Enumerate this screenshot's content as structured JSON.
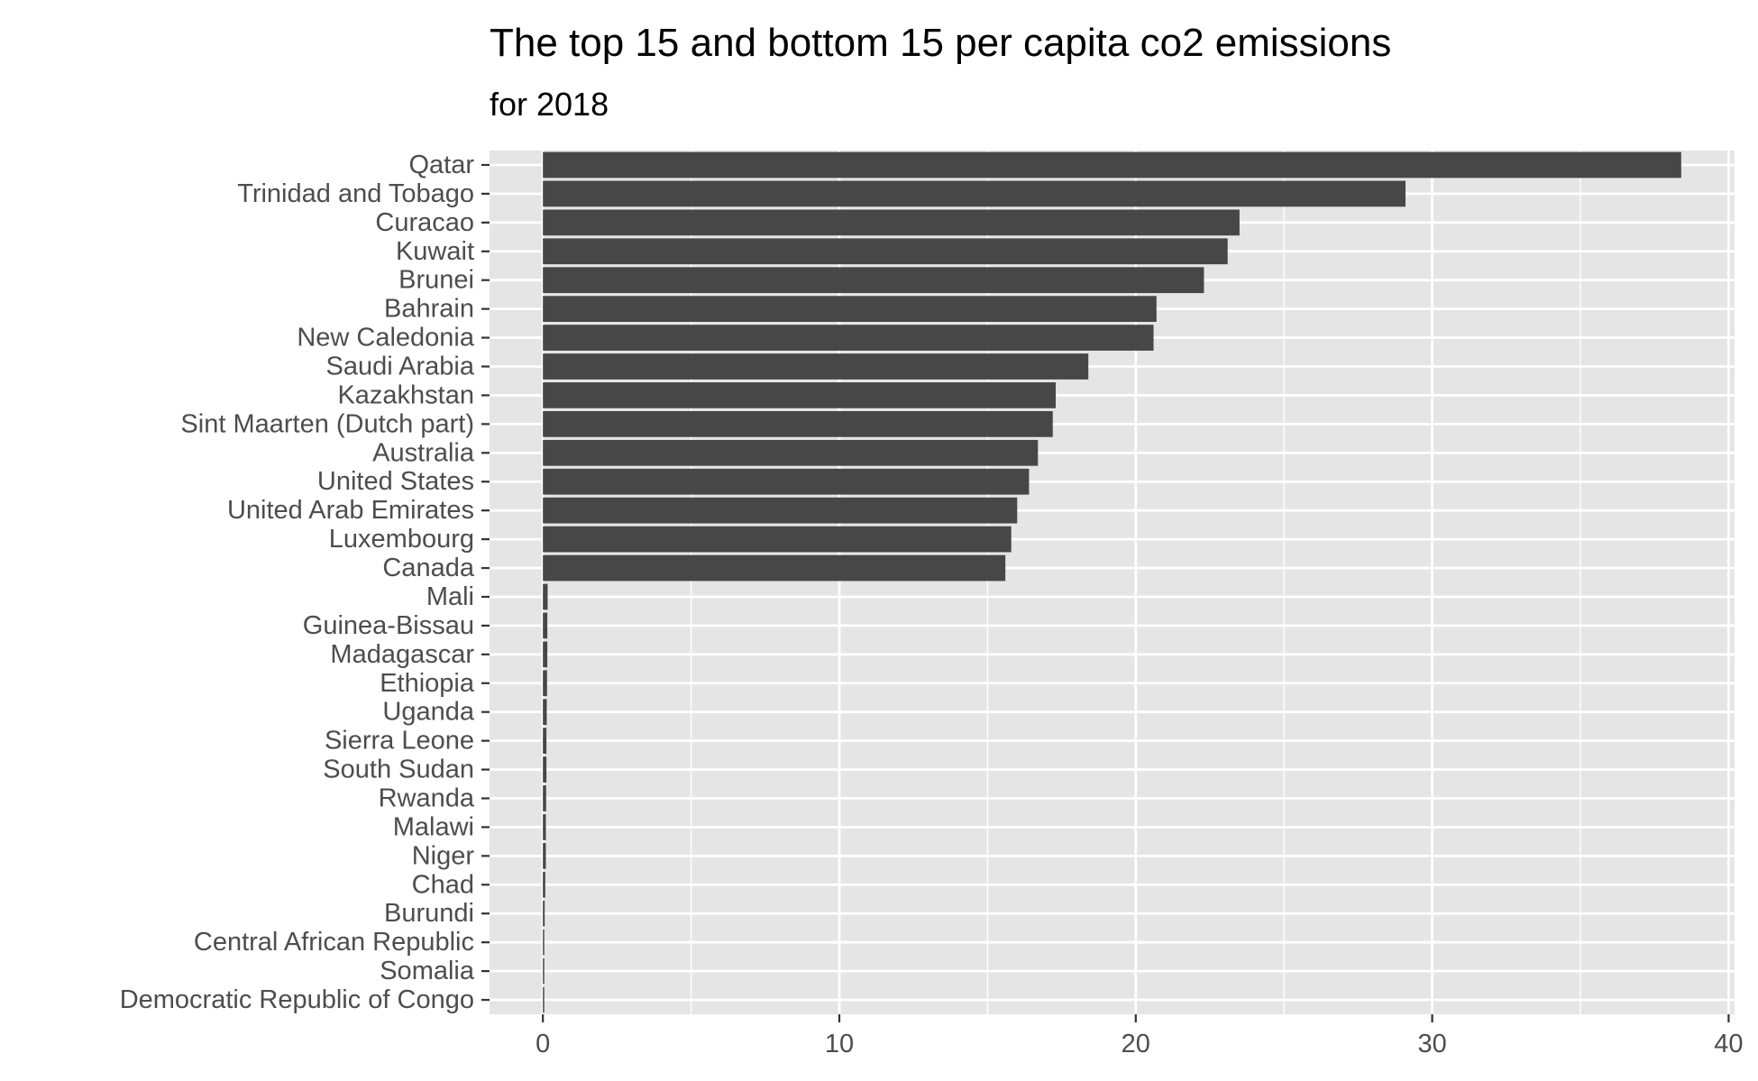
{
  "chart_data": {
    "type": "bar",
    "orientation": "horizontal",
    "title": "The top 15 and bottom 15 per capita co2 emissions",
    "subtitle": "for 2018",
    "xlabel": "",
    "ylabel": "",
    "xlim": [
      -1.8,
      40.2
    ],
    "x_ticks": [
      0,
      10,
      20,
      30,
      40
    ],
    "grid": true,
    "legend": "none",
    "colors": {
      "panel": "#e5e5e5",
      "bar": "#474747",
      "grid": "#ffffff",
      "tick_text": "#4d4d4d",
      "tick_mark": "#333333"
    },
    "categories": [
      "Qatar",
      "Trinidad and Tobago",
      "Curacao",
      "Kuwait",
      "Brunei",
      "Bahrain",
      "New Caledonia",
      "Saudi Arabia",
      "Kazakhstan",
      "Sint Maarten (Dutch part)",
      "Australia",
      "United States",
      "United Arab Emirates",
      "Luxembourg",
      "Canada",
      "Mali",
      "Guinea-Bissau",
      "Madagascar",
      "Ethiopia",
      "Uganda",
      "Sierra Leone",
      "South Sudan",
      "Rwanda",
      "Malawi",
      "Niger",
      "Chad",
      "Burundi",
      "Central African Republic",
      "Somalia",
      "Democratic Republic of Congo"
    ],
    "values": [
      38.4,
      29.1,
      23.5,
      23.1,
      22.3,
      20.7,
      20.6,
      18.4,
      17.3,
      17.2,
      16.7,
      16.4,
      16.0,
      15.8,
      15.6,
      0.16,
      0.15,
      0.15,
      0.14,
      0.13,
      0.12,
      0.12,
      0.11,
      0.1,
      0.1,
      0.08,
      0.06,
      0.04,
      0.04,
      0.03
    ]
  }
}
